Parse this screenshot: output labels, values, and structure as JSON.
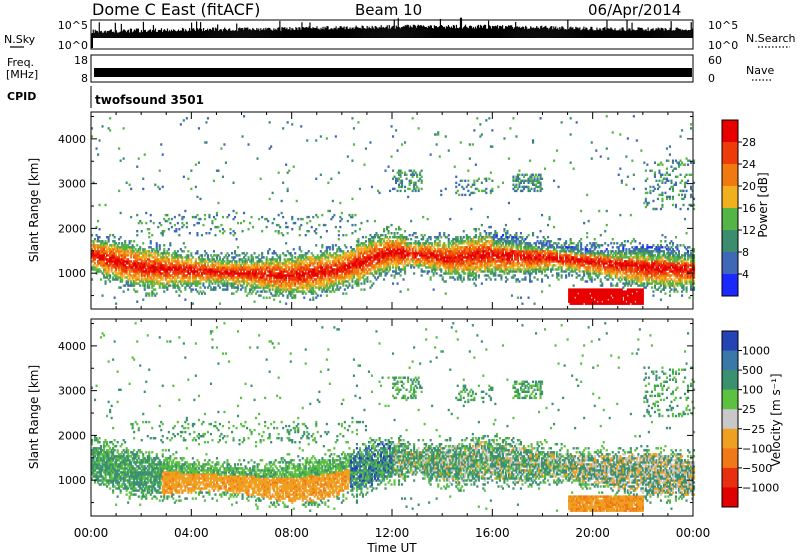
{
  "header": {
    "station": "Dome C East (fitACF)",
    "beam": "Beam 10",
    "date": "06/Apr/2014"
  },
  "top_strip": {
    "nsky_label": "N.Sky",
    "nsky_ticks": [
      "10^5",
      "10^0"
    ],
    "nsearch_label": "N.Search",
    "nsearch_ticks": [
      "10^5",
      "10^0"
    ],
    "freq_label": "Freq.",
    "freq_unit": "[MHz]",
    "freq_ticks": [
      "18",
      "8"
    ],
    "nave_label": "Nave",
    "nave_ticks": [
      "60",
      "0"
    ],
    "cpid_label": "CPID",
    "cpid_value": "twofsound 3501"
  },
  "chart_data": [
    {
      "type": "heatmap",
      "panel": "power",
      "ylabel": "Slant Range [km]",
      "yticks": [
        "1000",
        "2000",
        "3000",
        "4000"
      ],
      "ylim": [
        200,
        4600
      ],
      "xlim": [
        0,
        24
      ],
      "colorbar_label": "Power [dB]",
      "colorbar_ticks": [
        "4",
        "8",
        "12",
        "16",
        "20",
        "24",
        "28"
      ],
      "colors": [
        "#1a2aff",
        "#3f68b7",
        "#3c8c70",
        "#55b446",
        "#f2b01e",
        "#f07a10",
        "#ee3b0a",
        "#e80000"
      ]
    },
    {
      "type": "heatmap",
      "panel": "velocity",
      "ylabel": "Slant Range [km]",
      "yticks": [
        "1000",
        "2000",
        "3000",
        "4000"
      ],
      "ylim": [
        200,
        4600
      ],
      "xlim": [
        0,
        24
      ],
      "xlabel": "Time UT",
      "xticks": [
        "00:00",
        "04:00",
        "08:00",
        "12:00",
        "16:00",
        "20:00",
        "00:00"
      ],
      "colorbar_label": "Velocity [m s⁻¹]",
      "colorbar_ticks": [
        "1000",
        "500",
        "100",
        "25",
        "−25",
        "−100",
        "−500",
        "−1000"
      ],
      "colors": [
        "#2444b4",
        "#3a78a8",
        "#3b9070",
        "#5cc040",
        "#c8c8c8",
        "#f0a020",
        "#f07818",
        "#e83010",
        "#e00000"
      ]
    }
  ]
}
